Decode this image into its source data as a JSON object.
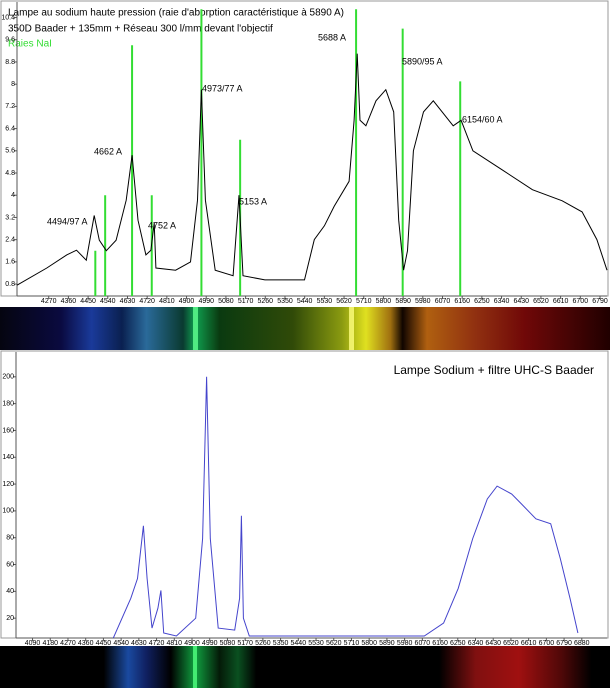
{
  "chart_data": [
    {
      "type": "line",
      "title": "Lampe au sodium haute pression (raie d'aborption caractéristique à 5890 A)",
      "subtitle": "350D Baader + 135mm + Réseau 300 l/mm devant l'objectif",
      "annotations": [
        "4494/97 A",
        "4662 A",
        "4752 A",
        "4973/77 A",
        "5153 A",
        "5688 A",
        "5890/95 A",
        "6154/60 A"
      ],
      "xlim": [
        4125,
        6822
      ],
      "ylim": [
        0.37,
        10.96
      ],
      "xticks": [
        4270,
        4360,
        4450,
        4540,
        4630,
        4720,
        4810,
        4900,
        4990,
        5080,
        5170,
        5260,
        5350,
        5440,
        5530,
        5620,
        5710,
        5800,
        5890,
        5980,
        6070,
        6160,
        6250,
        6340,
        6430,
        6520,
        6610,
        6700,
        6790
      ],
      "yticks": [
        0.8,
        1.6,
        2.4,
        3.2,
        4,
        4.8,
        5.6,
        6.4,
        7.2,
        8,
        8.8,
        9.6,
        10.4
      ],
      "series": [
        {
          "color": "#000000",
          "style": "line",
          "x": [
            4125,
            4261,
            4352,
            4397,
            4442,
            4478,
            4501,
            4533,
            4578,
            4624,
            4651,
            4678,
            4714,
            4737,
            4752,
            4760,
            4850,
            4918,
            4950,
            4968,
            4986,
            5031,
            5113,
            5140,
            5158,
            5258,
            5439,
            5484,
            5530,
            5575,
            5643,
            5666,
            5680,
            5693,
            5720,
            5766,
            5811,
            5847,
            5870,
            5892,
            5910,
            5937,
            5983,
            6028,
            6119,
            6155,
            6209,
            6345,
            6481,
            6617,
            6708,
            6776,
            6822
          ],
          "values": [
            0.76,
            1.38,
            1.85,
            2.02,
            1.66,
            3.27,
            2.38,
            2.0,
            2.38,
            3.82,
            5.44,
            3.1,
            1.85,
            2.02,
            3.0,
            1.38,
            1.3,
            1.6,
            3.82,
            7.8,
            3.82,
            1.3,
            1.1,
            4.0,
            1.1,
            0.95,
            0.95,
            2.4,
            2.9,
            3.6,
            4.5,
            6.7,
            9.1,
            6.7,
            6.5,
            7.4,
            7.8,
            7.0,
            3.1,
            1.3,
            2.0,
            5.6,
            7.0,
            7.4,
            6.5,
            6.7,
            5.6,
            4.9,
            4.2,
            3.8,
            3.4,
            2.4,
            1.3
          ]
        },
        {
          "name": "Raies NaI",
          "color": "#33dd33",
          "style": "stems",
          "x": [
            4483,
            4528,
            4651,
            4741,
            4968,
            5145,
            5675,
            5888,
            6151
          ],
          "values": [
            2.0,
            4.0,
            9.4,
            4.0,
            10.7,
            6.0,
            10.7,
            10.0,
            8.1
          ]
        }
      ]
    },
    {
      "type": "line",
      "title": "Lampe Sodium + filtre UHC-S Baader",
      "xlim": [
        4006,
        7008
      ],
      "ylim": [
        5.2,
        218.5
      ],
      "xticks": [
        4090,
        4180,
        4270,
        4360,
        4450,
        4540,
        4630,
        4720,
        4810,
        4900,
        4990,
        5080,
        5170,
        5260,
        5350,
        5440,
        5530,
        5620,
        5710,
        5800,
        5890,
        5980,
        6070,
        6160,
        6250,
        6340,
        6430,
        6520,
        6610,
        6700,
        6790,
        6880
      ],
      "yticks": [
        20,
        40,
        60,
        80,
        100,
        120,
        140,
        160,
        180,
        200
      ],
      "series": [
        {
          "color": "#4444cc",
          "style": "line",
          "x": [
            4500,
            4589,
            4623,
            4653,
            4672,
            4697,
            4727,
            4742,
            4756,
            4821,
            4919,
            4954,
            4974,
            4993,
            5033,
            5117,
            5142,
            5151,
            5161,
            5191,
            6080,
            6178,
            6252,
            6326,
            6400,
            6450,
            6524,
            6573,
            6647,
            6722,
            6771,
            6820,
            6860
          ],
          "values": [
            5.2,
            34.8,
            49.6,
            88.9,
            49.6,
            12.6,
            27.4,
            40.7,
            8.9,
            6.7,
            20,
            79.3,
            200,
            79.3,
            12.6,
            11.1,
            34.8,
            96.3,
            20,
            6.7,
            6.7,
            16.3,
            42.2,
            79.3,
            108.9,
            118.5,
            112.6,
            105.2,
            94.1,
            90.4,
            64.4,
            34.8,
            8.9
          ]
        }
      ]
    }
  ]
}
